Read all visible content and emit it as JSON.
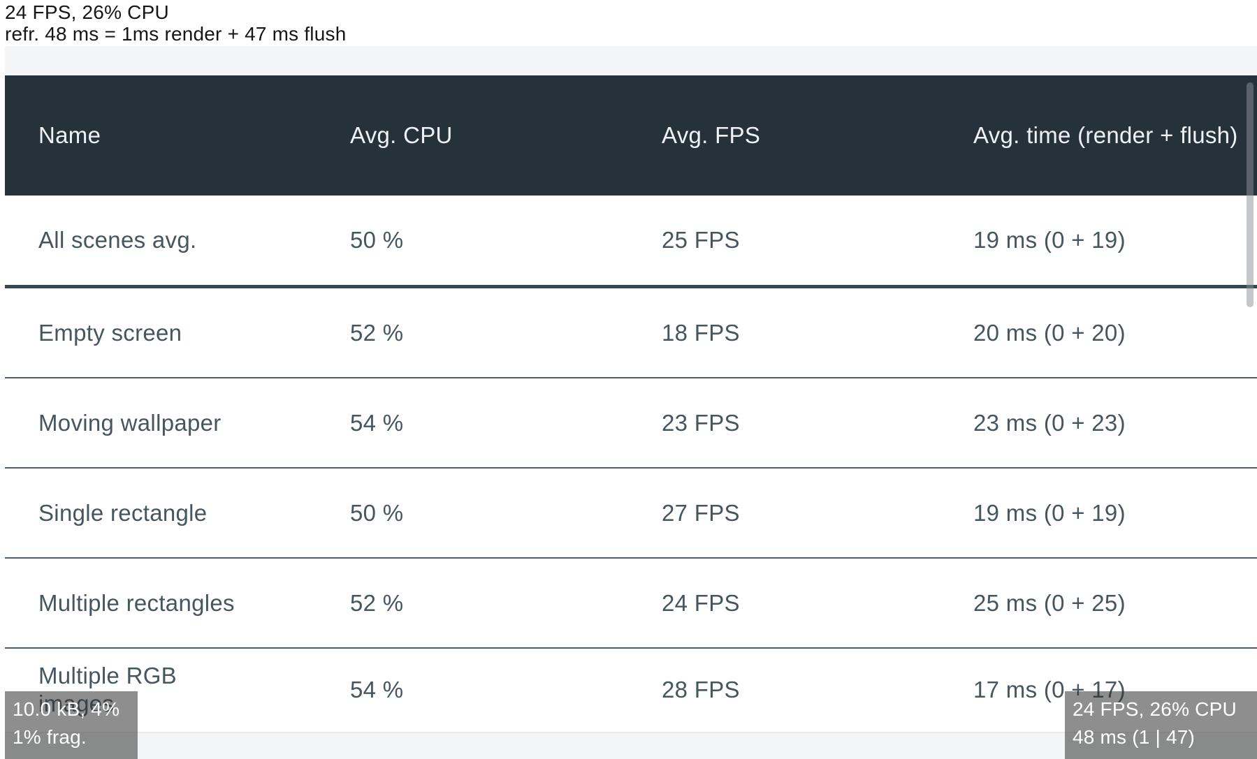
{
  "top_stats": {
    "line1": "24 FPS, 26% CPU",
    "line2": "refr. 48 ms = 1ms render + 47 ms flush"
  },
  "table": {
    "columns": [
      "Name",
      "Avg. CPU",
      "Avg. FPS",
      "Avg. time (render + flush)"
    ],
    "rows": [
      {
        "name": "All scenes avg.",
        "cpu": "50 %",
        "fps": "25 FPS",
        "time": "19 ms (0 + 19)"
      },
      {
        "name": "Empty screen",
        "cpu": "52 %",
        "fps": "18 FPS",
        "time": "20 ms (0 + 20)"
      },
      {
        "name": "Moving wallpaper",
        "cpu": "54 %",
        "fps": "23 FPS",
        "time": "23 ms (0 + 23)"
      },
      {
        "name": "Single rectangle",
        "cpu": "50 %",
        "fps": "27 FPS",
        "time": "19 ms (0 + 19)"
      },
      {
        "name": "Multiple rectangles",
        "cpu": "52 %",
        "fps": "24 FPS",
        "time": "25 ms (0 + 25)"
      },
      {
        "name": "Multiple RGB images",
        "cpu": "54 %",
        "fps": "28 FPS",
        "time": "17 ms (0 + 17)"
      }
    ]
  },
  "hud_bottom_left": {
    "line1": "10.0 kB, 4%",
    "line2": "1% frag."
  },
  "hud_bottom_right": {
    "line1": "24 FPS, 26% CPU",
    "line2": "48 ms (1 | 47)"
  },
  "colors": {
    "header_bg": "#26323a",
    "row_text": "#46565e",
    "separator_thin": "#4d5d65",
    "separator_thick": "#37474f",
    "strip_bg": "#f4f5f6",
    "hud_bg": "rgba(50,50,50,0.55)"
  }
}
